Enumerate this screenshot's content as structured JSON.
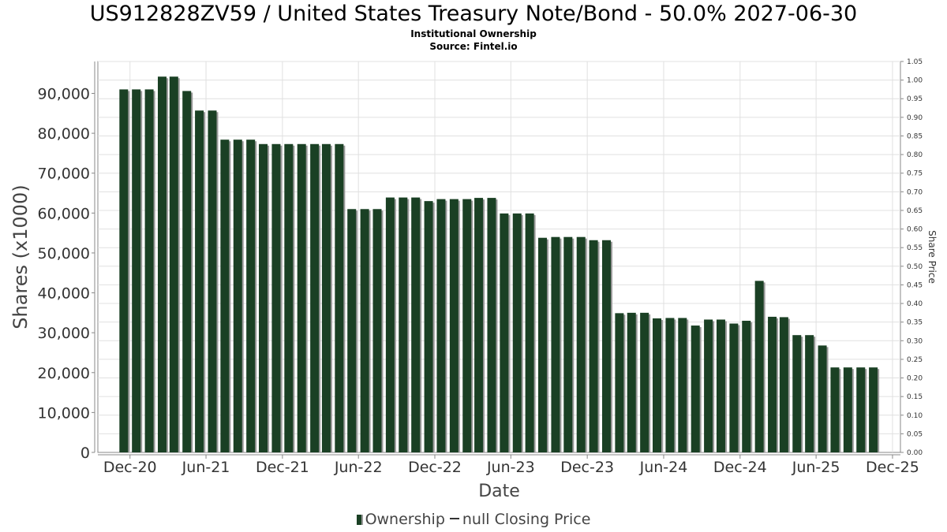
{
  "header": {
    "title": "US912828ZV59 / United States Treasury Note/Bond - 50.0% 2027-06-30",
    "subtitle": "Institutional Ownership",
    "source": "Source: Fintel.io"
  },
  "legend": {
    "ownership_label": "Ownership",
    "price_label": "null Closing Price"
  },
  "colors": {
    "bar": "#1a4024",
    "bar_shadow": "#999999",
    "grid": "#e0e0e0",
    "axis": "#888888"
  },
  "chart_data": {
    "type": "bar",
    "xlabel": "Date",
    "ylabel": "Shares (x1000)",
    "y2label": "Share Price",
    "ylim": [
      0,
      98000
    ],
    "y2lim": [
      0,
      1.05
    ],
    "yticks": [
      0,
      10000,
      20000,
      30000,
      40000,
      50000,
      60000,
      70000,
      80000,
      90000
    ],
    "ytick_labels": [
      "0",
      "10,000",
      "20,000",
      "30,000",
      "40,000",
      "50,000",
      "60,000",
      "70,000",
      "80,000",
      "90,000"
    ],
    "y2ticks": [
      "0.00",
      "0.05",
      "0.10",
      "0.15",
      "0.20",
      "0.25",
      "0.30",
      "0.35",
      "0.40",
      "0.45",
      "0.50",
      "0.55",
      "0.60",
      "0.65",
      "0.70",
      "0.75",
      "0.80",
      "0.85",
      "0.90",
      "0.95",
      "1.00",
      "1.05"
    ],
    "xlim": [
      "2020-09-15",
      "2025-12-20"
    ],
    "xticks": [
      "2020-12-01",
      "2021-06-01",
      "2021-12-01",
      "2022-06-01",
      "2022-12-01",
      "2023-06-01",
      "2023-12-01",
      "2024-06-01",
      "2024-12-01",
      "2025-06-01",
      "2025-12-01"
    ],
    "xtick_labels": [
      "Dec-20",
      "Jun-21",
      "Dec-21",
      "Jun-22",
      "Dec-22",
      "Jun-23",
      "Dec-23",
      "Jun-24",
      "Dec-24",
      "Jun-25",
      "Dec-25"
    ],
    "grid": true,
    "legend_position": "bottom",
    "series": [
      {
        "values": [
          [
            "2020-11-01",
            91000
          ],
          [
            "2020-12-01",
            91000
          ],
          [
            "2021-01-01",
            91000
          ],
          [
            "2021-02-01",
            94200
          ],
          [
            "2021-03-01",
            94200
          ],
          [
            "2021-04-01",
            90600
          ],
          [
            "2021-05-01",
            85700
          ],
          [
            "2021-06-01",
            85700
          ],
          [
            "2021-07-01",
            78400
          ],
          [
            "2021-08-01",
            78400
          ],
          [
            "2021-09-01",
            78400
          ],
          [
            "2021-10-01",
            77300
          ],
          [
            "2021-11-01",
            77300
          ],
          [
            "2021-12-01",
            77300
          ],
          [
            "2022-01-01",
            77300
          ],
          [
            "2022-02-01",
            77300
          ],
          [
            "2022-03-01",
            77300
          ],
          [
            "2022-04-01",
            77300
          ],
          [
            "2022-05-01",
            61000
          ],
          [
            "2022-06-01",
            61000
          ],
          [
            "2022-07-01",
            61000
          ],
          [
            "2022-08-01",
            63900
          ],
          [
            "2022-09-01",
            63900
          ],
          [
            "2022-10-01",
            63900
          ],
          [
            "2022-11-01",
            63000
          ],
          [
            "2022-12-01",
            63500
          ],
          [
            "2023-01-01",
            63500
          ],
          [
            "2023-02-01",
            63500
          ],
          [
            "2023-03-01",
            63800
          ],
          [
            "2023-04-01",
            63800
          ],
          [
            "2023-05-01",
            59900
          ],
          [
            "2023-06-01",
            59900
          ],
          [
            "2023-07-01",
            59900
          ],
          [
            "2023-08-01",
            53800
          ],
          [
            "2023-09-01",
            54000
          ],
          [
            "2023-10-01",
            54000
          ],
          [
            "2023-11-01",
            54000
          ],
          [
            "2023-12-01",
            53200
          ],
          [
            "2024-01-01",
            53200
          ],
          [
            "2024-02-01",
            34900
          ],
          [
            "2024-03-01",
            35000
          ],
          [
            "2024-04-01",
            35000
          ],
          [
            "2024-05-01",
            33600
          ],
          [
            "2024-06-01",
            33700
          ],
          [
            "2024-07-01",
            33700
          ],
          [
            "2024-08-01",
            31800
          ],
          [
            "2024-09-01",
            33300
          ],
          [
            "2024-10-01",
            33300
          ],
          [
            "2024-11-01",
            32300
          ],
          [
            "2024-12-01",
            33000
          ],
          [
            "2025-01-01",
            43000
          ],
          [
            "2025-02-01",
            34000
          ],
          [
            "2025-03-01",
            33900
          ],
          [
            "2025-04-01",
            29400
          ],
          [
            "2025-05-01",
            29400
          ],
          [
            "2025-06-01",
            26800
          ],
          [
            "2025-07-01",
            21300
          ],
          [
            "2025-08-01",
            21300
          ],
          [
            "2025-09-01",
            21300
          ],
          [
            "2025-10-01",
            21300
          ]
        ]
      }
    ]
  }
}
